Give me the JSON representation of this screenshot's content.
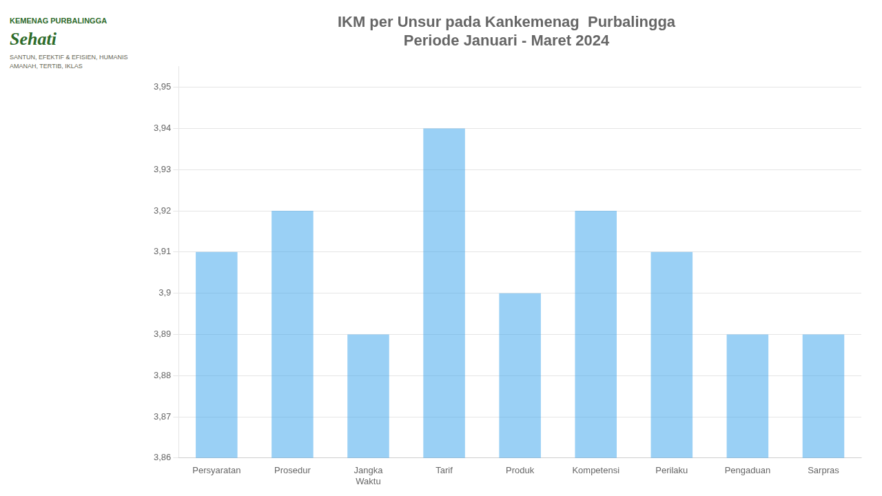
{
  "chart_data": {
    "type": "bar",
    "title": "IKM per Unsur pada Kankemenag  Purbalingga\nPeriode Januari - Maret 2024",
    "categories": [
      "Persyaratan",
      "Prosedur",
      "Jangka\nWaktu",
      "Tarif",
      "Produk",
      "Kompetensi",
      "Perilaku",
      "Pengaduan",
      "Sarpras"
    ],
    "values": [
      3.91,
      3.92,
      3.89,
      3.94,
      3.9,
      3.92,
      3.91,
      3.89,
      3.89
    ],
    "ylim": [
      3.86,
      3.955
    ],
    "yticks": [
      {
        "value": 3.86,
        "label": "3,86"
      },
      {
        "value": 3.87,
        "label": "3,87"
      },
      {
        "value": 3.88,
        "label": "3,88"
      },
      {
        "value": 3.89,
        "label": "3,89"
      },
      {
        "value": 3.9,
        "label": "3,9"
      },
      {
        "value": 3.91,
        "label": "3,91"
      },
      {
        "value": 3.92,
        "label": "3,92"
      },
      {
        "value": 3.93,
        "label": "3,93"
      },
      {
        "value": 3.94,
        "label": "3,94"
      },
      {
        "value": 3.95,
        "label": "3,95"
      }
    ],
    "grid": true,
    "annotations": [
      "KEMENAG PURBALINGGA",
      "Sehati",
      "SANTUN, EFEKTIF & EFISIEN, HUMANIS",
      "AMANAH, TERTIB, IKLAS"
    ]
  }
}
